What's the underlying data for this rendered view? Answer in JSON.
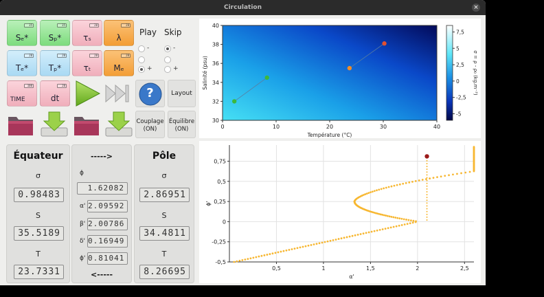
{
  "window": {
    "title": "Circulation",
    "close_glyph": "×"
  },
  "tiles": [
    {
      "label": "Sₑ*",
      "lcd": "35"
    },
    {
      "label": "Sₚ*",
      "lcd": "35"
    },
    {
      "label": "τₛ",
      "lcd": "20"
    },
    {
      "label": "λ",
      "lcd": "20"
    },
    {
      "label": "Tₑ*",
      "lcd": "20"
    },
    {
      "label": "Tₚ*",
      "lcd": "20"
    },
    {
      "label": "τₜ",
      "lcd": "20"
    },
    {
      "label": "Mₑ",
      "lcd": "20"
    },
    {
      "label": "TIME",
      "lcd": "100"
    },
    {
      "label": "dt",
      "lcd": "20"
    }
  ],
  "buttons": {
    "play_icon": "play-icon",
    "skip_icon": "skip-forward-icon",
    "help_glyph": "?",
    "layout_label": "Layout",
    "couplage_label": "Couplage",
    "couplage_state": "(ON)",
    "equilibre_label": "Équilibre",
    "equilibre_state": "(ON)"
  },
  "radios": {
    "play_header": "Play",
    "skip_header": "Skip",
    "row_minus": "-",
    "row_plus": "+",
    "play_selected": "plus",
    "skip_selected": "minus"
  },
  "equator": {
    "title": "Équateur",
    "sigma_label": "σ",
    "sigma_value": "0.98483",
    "s_label": "S",
    "s_value": "35.5189",
    "t_label": "T",
    "t_value": "23.7331"
  },
  "middle": {
    "arrow_right": "----->",
    "arrow_left": "<-----",
    "phi_label": "ϕ",
    "phi_value": "1.62082",
    "alpha_label": "α'",
    "alpha_value": "2.09592",
    "beta_label": "β'",
    "beta_value": "2.00786",
    "delta_label": "δ'",
    "delta_value": "0.16949",
    "phiprime_label": "ϕ'",
    "phiprime_value": "0.81041"
  },
  "pole": {
    "title": "Pôle",
    "sigma_label": "σ",
    "sigma_value": "2.86951",
    "s_label": "S",
    "s_value": "34.4811",
    "t_label": "T",
    "t_value": "8.26695"
  },
  "colors": {
    "green_point": "#3cb83c",
    "orange_point": "#f08c28",
    "red_point": "#e05030",
    "curve": "#f7b731",
    "current_point": "#9b1b1b"
  },
  "chart_data": [
    {
      "type": "heatmap",
      "xlabel": "Température (°C)",
      "ylabel": "Salinité (psu)",
      "xlim": [
        0,
        40
      ],
      "ylim": [
        30,
        40
      ],
      "x_ticks": [
        "0",
        "10",
        "20",
        "30",
        "40"
      ],
      "y_ticks": [
        "30",
        "32",
        "34",
        "36",
        "38",
        "40"
      ],
      "colorbar_label": "σ = ρ - ρ₀ (kg.m⁻³)",
      "colorbar_ticks": [
        "7,5",
        "5",
        "2,5",
        "0",
        "-2,5",
        "-5"
      ],
      "colorbar_range": [
        -6,
        8.5
      ],
      "series": [
        {
          "points": [
            [
              2.2,
              32.0
            ],
            [
              8.3,
              34.5
            ]
          ],
          "color": "#3cb83c"
        },
        {
          "points": [
            [
              23.7,
              35.5
            ],
            [
              30.2,
              38.1
            ]
          ],
          "color": "#f08c28"
        }
      ]
    },
    {
      "type": "scatter",
      "xlabel": "α'",
      "ylabel": "ϕ'",
      "xlim": [
        0,
        2.6
      ],
      "ylim": [
        -0.5,
        0.95
      ],
      "x_ticks": [
        "0,5",
        "1",
        "1,5",
        "2",
        "2,5"
      ],
      "y_ticks": [
        "-0,5",
        "-0,25",
        "0",
        "0,25",
        "0,5",
        "0,75"
      ],
      "y_tick_values": [
        -0.5,
        -0.25,
        0,
        0.25,
        0.5,
        0.75
      ],
      "x_tick_values": [
        0.5,
        1,
        1.5,
        2,
        2.5
      ],
      "curve_beta": 2.0,
      "current_point": {
        "x": 2.1,
        "y": 0.81
      }
    }
  ]
}
